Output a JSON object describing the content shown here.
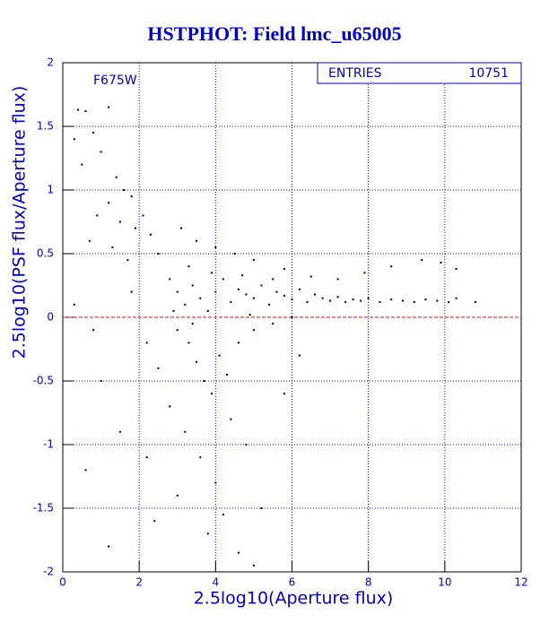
{
  "chart_data": {
    "type": "scatter",
    "title": "HSTPHOT: Field lmc_u65005",
    "xlabel": "2.5log10(Aperture flux)",
    "ylabel": "2.5log10(PSF flux/Aperture flux)",
    "annotation": "F675W",
    "stats": {
      "label": "ENTRIES",
      "value": 10751
    },
    "xlim": [
      0,
      12
    ],
    "ylim": [
      -2,
      2
    ],
    "xticks": [
      0,
      2,
      4,
      6,
      8,
      10,
      12
    ],
    "yticks": [
      -2,
      -1.5,
      -1,
      -0.5,
      0,
      0.5,
      1,
      1.5,
      2
    ],
    "grid": true,
    "reference_line": {
      "y": 0,
      "color": "#ff0000"
    },
    "series": [
      {
        "color": "#000000",
        "x": [
          0.4,
          0.6,
          0.3,
          0.8,
          1.2,
          1.0,
          0.5,
          1.4,
          1.6,
          1.8,
          1.2,
          0.9,
          1.5,
          1.9,
          2.1,
          2.3,
          0.7,
          1.3,
          2.5,
          1.7,
          2.8,
          3.0,
          3.2,
          3.4,
          3.6,
          3.8,
          4.0,
          4.2,
          4.4,
          4.6,
          4.8,
          5.0,
          5.2,
          5.4,
          5.6,
          5.8,
          6.0,
          6.2,
          6.4,
          6.6,
          6.8,
          7.0,
          7.2,
          7.4,
          7.6,
          7.8,
          8.0,
          8.3,
          8.6,
          8.9,
          9.2,
          9.5,
          9.8,
          10.1,
          10.3,
          10.8,
          10.3,
          9.9,
          9.4,
          8.6,
          7.9,
          7.2,
          6.5,
          5.8,
          5.0,
          4.5,
          4.0,
          3.5,
          3.1,
          3.3,
          3.9,
          4.7,
          5.5,
          3.0,
          3.3,
          3.5,
          3.7,
          3.9,
          4.1,
          4.3,
          4.6,
          5.0,
          5.5,
          6.0,
          2.5,
          2.8,
          3.2,
          3.6,
          4.0,
          4.4,
          4.8,
          5.2,
          3.0,
          2.2,
          1.5,
          1.0,
          0.6,
          3.8,
          4.6,
          5.0,
          2.4,
          1.2,
          4.2,
          5.8,
          6.2,
          3.4,
          2.9,
          4.9,
          0.3,
          0.8,
          1.8,
          2.2
        ],
        "y": [
          1.63,
          1.62,
          1.4,
          1.45,
          1.65,
          1.3,
          1.2,
          1.1,
          1.0,
          0.95,
          0.9,
          0.8,
          0.75,
          0.7,
          0.8,
          0.65,
          0.6,
          0.55,
          0.5,
          0.45,
          0.3,
          0.2,
          0.1,
          0.25,
          0.15,
          0.05,
          0.2,
          0.3,
          0.12,
          0.22,
          0.18,
          0.15,
          0.25,
          0.1,
          0.2,
          0.17,
          0.14,
          0.22,
          0.12,
          0.18,
          0.15,
          0.13,
          0.16,
          0.12,
          0.14,
          0.13,
          0.15,
          0.12,
          0.14,
          0.13,
          0.12,
          0.14,
          0.13,
          0.12,
          0.15,
          0.12,
          0.38,
          0.43,
          0.45,
          0.4,
          0.35,
          0.3,
          0.32,
          0.38,
          0.45,
          0.5,
          0.55,
          0.6,
          0.7,
          0.4,
          0.35,
          0.33,
          0.3,
          -0.1,
          -0.2,
          -0.35,
          -0.5,
          -0.6,
          -0.3,
          -0.45,
          -0.2,
          -0.1,
          -0.05,
          0.0,
          -0.4,
          -0.7,
          -0.9,
          -1.1,
          -1.3,
          -0.8,
          -1.0,
          -1.5,
          -1.4,
          -1.1,
          -0.9,
          -0.5,
          -1.2,
          -1.7,
          -1.85,
          -1.95,
          -1.6,
          -1.8,
          -1.55,
          -0.6,
          -0.3,
          -0.05,
          0.05,
          0.02,
          0.1,
          -0.1,
          0.2,
          -0.2
        ]
      }
    ]
  }
}
